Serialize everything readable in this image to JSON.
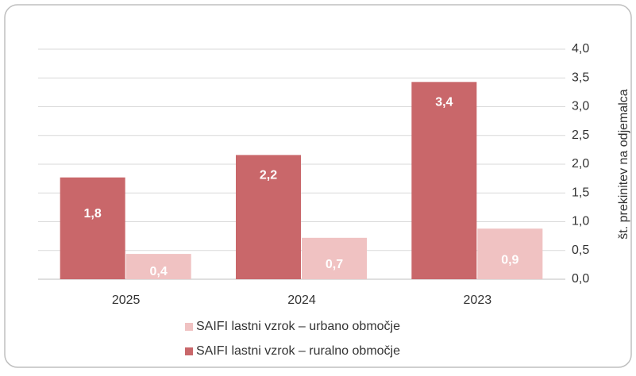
{
  "chart_data": {
    "type": "bar",
    "categories": [
      "2025",
      "2024",
      "2023"
    ],
    "series": [
      {
        "name": "SAIFI lastni vzrok – urbano območje",
        "color": "#f0c2c2",
        "values": [
          0.44,
          0.72,
          0.88
        ],
        "value_labels": [
          "0,4",
          "0,7",
          "0,9"
        ]
      },
      {
        "name": "SAIFI lastni vzrok – ruralno območje",
        "color": "#c9676a",
        "values": [
          1.77,
          2.16,
          3.43
        ],
        "value_labels": [
          "1,8",
          "2,2",
          "3,4"
        ]
      }
    ],
    "y_axis_label": "št. prekinitev na odjemalca",
    "ylim": [
      0,
      4
    ],
    "yticks": [
      {
        "value": 0,
        "label": "0,0"
      },
      {
        "value": 0.5,
        "label": "0,5"
      },
      {
        "value": 1,
        "label": "1,0"
      },
      {
        "value": 1.5,
        "label": "1,5"
      },
      {
        "value": 2,
        "label": "2,0"
      },
      {
        "value": 2.5,
        "label": "2,5"
      },
      {
        "value": 3,
        "label": "3,0"
      },
      {
        "value": 3.5,
        "label": "3,5"
      },
      {
        "value": 4,
        "label": "4,0"
      }
    ],
    "grid": true,
    "y_axis_side": "right",
    "legend": "bottom"
  }
}
